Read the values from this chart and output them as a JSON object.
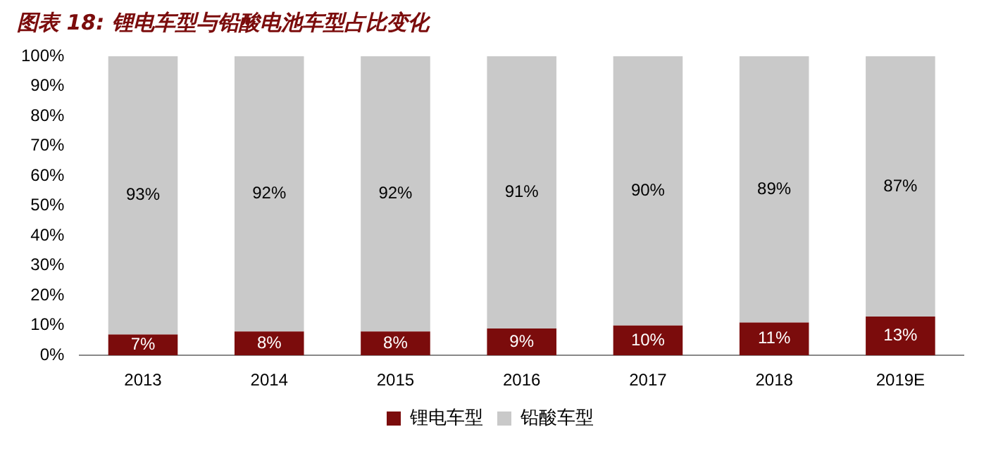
{
  "chart_data": {
    "type": "bar",
    "title": "图表 18: 锂电车型与铅酸电池车型占比变化",
    "categories": [
      "2013",
      "2014",
      "2015",
      "2016",
      "2017",
      "2018",
      "2019E"
    ],
    "stacked": true,
    "ylim": [
      0,
      100
    ],
    "yticks": [
      {
        "value": 0,
        "label": "0%"
      },
      {
        "value": 10,
        "label": "10%"
      },
      {
        "value": 20,
        "label": "20%"
      },
      {
        "value": 30,
        "label": "30%"
      },
      {
        "value": 40,
        "label": "40%"
      },
      {
        "value": 50,
        "label": "50%"
      },
      {
        "value": 60,
        "label": "60%"
      },
      {
        "value": 70,
        "label": "70%"
      },
      {
        "value": 80,
        "label": "80%"
      },
      {
        "value": 90,
        "label": "90%"
      },
      {
        "value": 100,
        "label": "100%"
      }
    ],
    "grid": false,
    "legend": "bottom",
    "series": [
      {
        "name": "锂电车型",
        "color": "#7b0c0c",
        "values": [
          7,
          8,
          8,
          9,
          10,
          11,
          13
        ],
        "value_labels": [
          "7%",
          "8%",
          "8%",
          "9%",
          "10%",
          "11%",
          "13%"
        ]
      },
      {
        "name": "铅酸车型",
        "color": "#c9c9c9",
        "values": [
          93,
          92,
          92,
          91,
          90,
          89,
          87
        ],
        "value_labels": [
          "93%",
          "92%",
          "92%",
          "91%",
          "90%",
          "89%",
          "87%"
        ]
      }
    ]
  }
}
